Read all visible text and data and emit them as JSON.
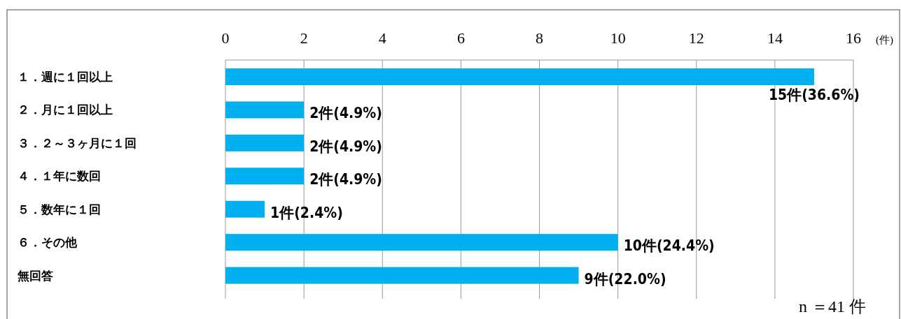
{
  "chart_data": {
    "type": "bar",
    "orientation": "horizontal",
    "xlabel": "(件)",
    "categories": [
      "１．週に１回以上",
      "２．月に１回以上",
      "３．２～３ヶ月に１回",
      "４．１年に数回",
      "５．数年に１回",
      "６．その他",
      "無回答"
    ],
    "values": [
      15,
      2,
      2,
      2,
      1,
      10,
      9
    ],
    "color": "#00b0f0",
    "value_labels": [
      "15件(36.6%)",
      "2件(4.9%)",
      "2件(4.9%)",
      "2件(4.9%)",
      "1件(2.4%)",
      "10件(24.4%)",
      "9件(22.0%)"
    ],
    "xlim": [
      0,
      16
    ],
    "xticks": [
      0,
      2,
      4,
      6,
      8,
      10,
      12,
      14,
      16
    ],
    "grid": "x",
    "annotations": [
      "n ＝41 件"
    ]
  }
}
